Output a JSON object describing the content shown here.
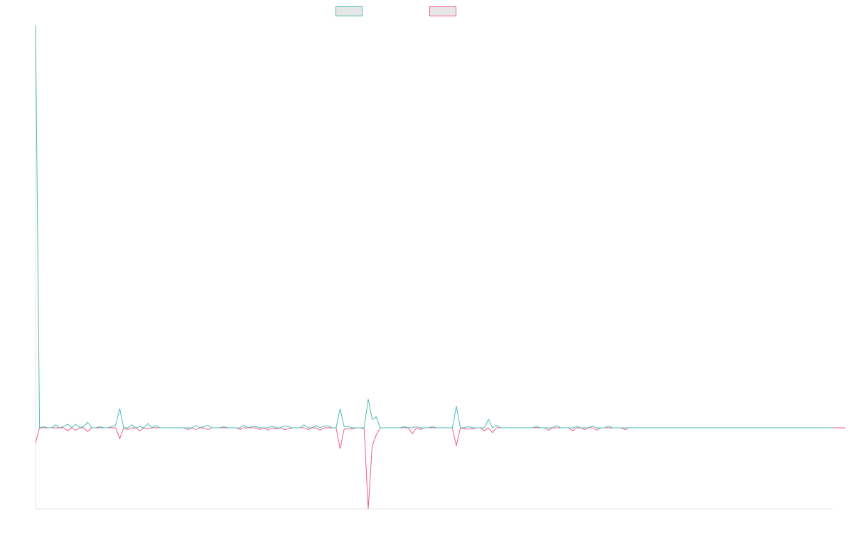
{
  "chart_data": {
    "type": "line",
    "title": "",
    "xlabel": "",
    "ylabel": "",
    "grid": false,
    "legend_position": "top-center",
    "x_count": 200,
    "ylim": [
      -1.35,
      6.7
    ],
    "series": [
      {
        "color": "#4dbdb4",
        "values": [
          6.7,
          0.0,
          0.02,
          0.0,
          0.0,
          0.05,
          0.0,
          0.02,
          0.06,
          0.0,
          0.06,
          0.0,
          0.02,
          0.09,
          0.0,
          0.0,
          0.02,
          0.0,
          0.0,
          0.02,
          0.05,
          0.32,
          0.0,
          0.0,
          0.05,
          0.0,
          0.02,
          0.0,
          0.07,
          0.0,
          0.04,
          0.0,
          0.0,
          0.0,
          0.0,
          0.0,
          0.0,
          0.0,
          0.0,
          0.0,
          0.04,
          0.0,
          0.02,
          0.04,
          0.0,
          0.0,
          0.0,
          0.02,
          0.0,
          0.0,
          0.0,
          0.0,
          0.04,
          0.0,
          0.02,
          0.02,
          0.0,
          0.0,
          0.0,
          0.03,
          0.0,
          0.0,
          0.03,
          0.02,
          0.0,
          0.0,
          0.0,
          0.05,
          0.0,
          0.0,
          0.04,
          0.0,
          0.03,
          0.03,
          0.0,
          0.0,
          0.32,
          0.02,
          0.02,
          0.0,
          0.0,
          0.0,
          0.0,
          0.48,
          0.14,
          0.18,
          0.0,
          0.0,
          0.0,
          0.0,
          0.0,
          0.0,
          0.02,
          0.0,
          0.0,
          0.02,
          0.0,
          0.0,
          0.0,
          0.02,
          0.0,
          0.0,
          0.0,
          0.0,
          0.0,
          0.36,
          0.0,
          0.0,
          0.02,
          0.0,
          0.0,
          0.0,
          0.0,
          0.14,
          0.0,
          0.04,
          0.0,
          0.0,
          0.0,
          0.0,
          0.0,
          0.0,
          0.0,
          0.0,
          0.0,
          0.02,
          0.0,
          0.0,
          0.0,
          0.0,
          0.04,
          0.0,
          0.0,
          0.0,
          0.0,
          0.02,
          0.0,
          0.0,
          0.0,
          0.03,
          0.0,
          0.0,
          0.0,
          0.03,
          0.0,
          0.0,
          0.0,
          0.0,
          0.0,
          0.0,
          0.0,
          0.0,
          0.0,
          0.0,
          0.0,
          0.0,
          0.0,
          0.0,
          0.0,
          0.0,
          0.0,
          0.0,
          0.0,
          0.0,
          0.0,
          0.0,
          0.0,
          0.0,
          0.0,
          0.0,
          0.0,
          0.0,
          0.0,
          0.0,
          0.0,
          0.0,
          0.0,
          0.0,
          0.0,
          0.0,
          0.0,
          0.0,
          0.0,
          0.0,
          0.0,
          0.0,
          0.0,
          0.0,
          0.0,
          0.0,
          0.0,
          0.0,
          0.0,
          0.0,
          0.0,
          0.0,
          0.0,
          0.0,
          0.0,
          0.0
        ]
      },
      {
        "color": "#ec5f82",
        "values": [
          -0.25,
          0.0,
          0.0,
          0.0,
          0.0,
          0.0,
          0.0,
          0.0,
          -0.05,
          0.0,
          -0.04,
          0.0,
          0.0,
          -0.06,
          0.0,
          0.0,
          0.0,
          0.0,
          0.0,
          0.0,
          0.0,
          -0.18,
          0.0,
          -0.03,
          0.0,
          0.0,
          -0.05,
          0.0,
          -0.02,
          0.0,
          0.0,
          0.0,
          0.0,
          0.0,
          0.0,
          0.0,
          0.0,
          0.0,
          -0.03,
          0.0,
          -0.03,
          0.0,
          0.0,
          -0.03,
          0.0,
          0.0,
          0.0,
          0.0,
          0.0,
          0.0,
          0.0,
          -0.03,
          0.0,
          0.0,
          0.0,
          0.0,
          -0.03,
          0.0,
          -0.04,
          0.0,
          -0.02,
          0.0,
          -0.03,
          -0.02,
          0.0,
          0.0,
          0.0,
          0.0,
          -0.03,
          0.0,
          0.0,
          -0.04,
          0.0,
          0.0,
          0.0,
          0.0,
          -0.35,
          -0.02,
          -0.02,
          -0.02,
          0.0,
          0.0,
          -0.02,
          -1.35,
          -0.3,
          -0.12,
          0.0,
          0.0,
          0.0,
          0.0,
          0.0,
          0.0,
          0.0,
          0.0,
          -0.1,
          0.0,
          -0.03,
          0.0,
          0.0,
          0.0,
          0.0,
          0.0,
          0.0,
          0.0,
          0.0,
          -0.3,
          0.0,
          -0.02,
          -0.02,
          -0.02,
          0.0,
          0.0,
          -0.05,
          0.0,
          -0.08,
          0.0,
          0.0,
          0.0,
          0.0,
          0.0,
          0.0,
          0.0,
          0.0,
          0.0,
          0.0,
          0.0,
          0.0,
          0.0,
          -0.04,
          0.0,
          0.0,
          0.0,
          0.0,
          0.0,
          -0.05,
          0.0,
          0.0,
          -0.03,
          0.0,
          0.0,
          -0.04,
          0.0,
          0.0,
          0.0,
          0.0,
          0.0,
          0.0,
          -0.03,
          0.0,
          0.0,
          0.0,
          0.0,
          0.0,
          0.0,
          0.0,
          0.0,
          0.0,
          0.0,
          0.0,
          0.0,
          0.0,
          0.0,
          0.0,
          0.0,
          0.0,
          0.0,
          0.0,
          0.0,
          0.0,
          0.0,
          0.0,
          0.0,
          0.0,
          0.0,
          0.0,
          0.0,
          0.0,
          0.0,
          0.0,
          0.0,
          0.0,
          0.0,
          0.0,
          0.0,
          0.0,
          0.0,
          0.0,
          0.0,
          0.0,
          0.0,
          0.0,
          0.0,
          0.0,
          0.0,
          0.0,
          0.0,
          0.0,
          0.0,
          0.0,
          0.0,
          0.0,
          0.0,
          0.0
        ]
      }
    ]
  },
  "legend": [
    {
      "color": "#4dbdb4",
      "label": ""
    },
    {
      "color": "#ec5f82",
      "label": ""
    }
  ]
}
